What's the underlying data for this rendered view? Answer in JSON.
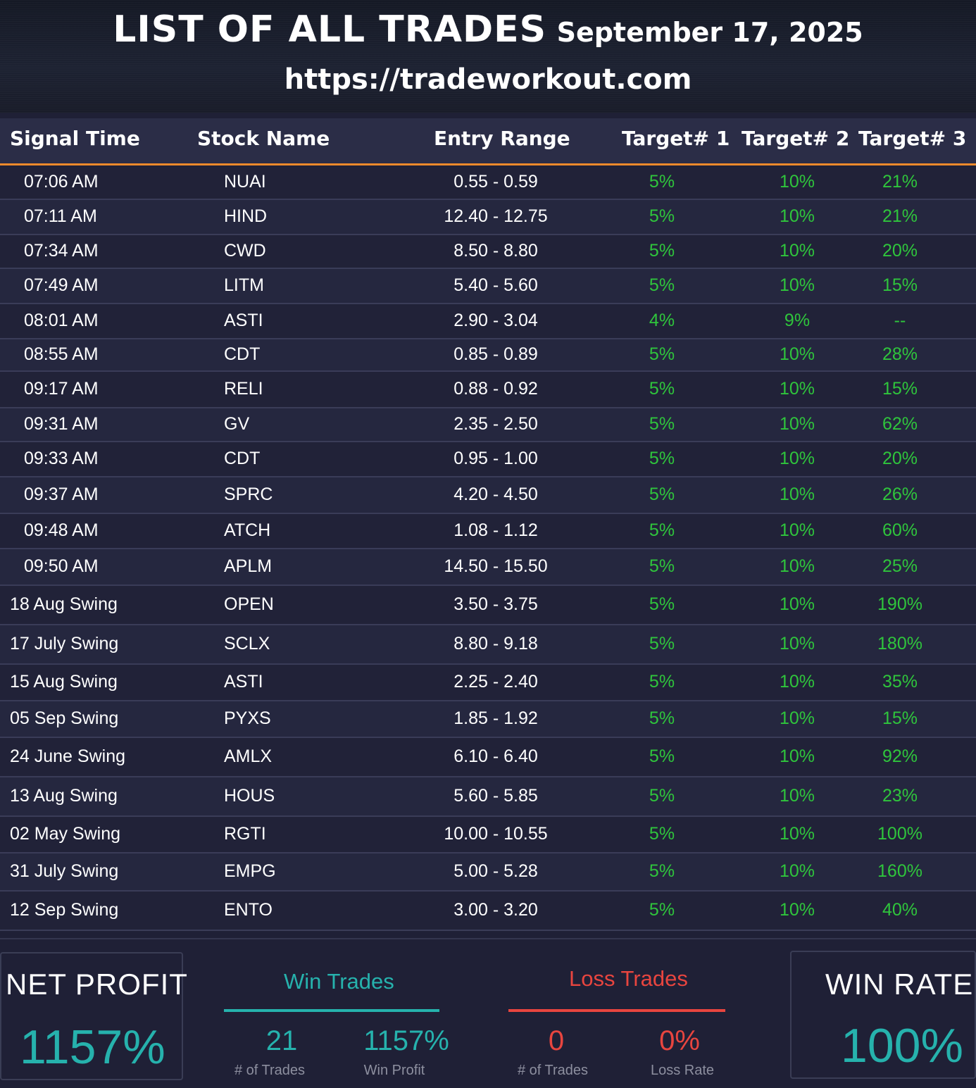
{
  "header": {
    "title": "LIST OF ALL TRADES",
    "date": "September 17, 2025",
    "url": "https://tradeworkout.com"
  },
  "columns": [
    "Signal Time",
    "Stock Name",
    "Entry Range",
    "Target# 1",
    "Target# 2",
    "Target# 3"
  ],
  "trades": [
    {
      "time": "07:06 AM",
      "stock": "NUAI",
      "range": "0.55 - 0.59",
      "t1": "5%",
      "t2": "10%",
      "t3": "21%"
    },
    {
      "time": "07:11 AM",
      "stock": "HIND",
      "range": "12.40 - 12.75",
      "t1": "5%",
      "t2": "10%",
      "t3": "21%"
    },
    {
      "time": "07:34 AM",
      "stock": "CWD",
      "range": "8.50 - 8.80",
      "t1": "5%",
      "t2": "10%",
      "t3": "20%"
    },
    {
      "time": "07:49 AM",
      "stock": "LITM",
      "range": "5.40 - 5.60",
      "t1": "5%",
      "t2": "10%",
      "t3": "15%"
    },
    {
      "time": "08:01 AM",
      "stock": "ASTI",
      "range": "2.90 - 3.04",
      "t1": "4%",
      "t2": "9%",
      "t3": "--"
    },
    {
      "time": "08:55 AM",
      "stock": "CDT",
      "range": "0.85 - 0.89",
      "t1": "5%",
      "t2": "10%",
      "t3": "28%"
    },
    {
      "time": "09:17 AM",
      "stock": "RELI",
      "range": "0.88 - 0.92",
      "t1": "5%",
      "t2": "10%",
      "t3": "15%"
    },
    {
      "time": "09:31 AM",
      "stock": "GV",
      "range": "2.35 - 2.50",
      "t1": "5%",
      "t2": "10%",
      "t3": "62%"
    },
    {
      "time": "09:33 AM",
      "stock": "CDT",
      "range": "0.95 - 1.00",
      "t1": "5%",
      "t2": "10%",
      "t3": "20%"
    },
    {
      "time": "09:37 AM",
      "stock": "SPRC",
      "range": "4.20 - 4.50",
      "t1": "5%",
      "t2": "10%",
      "t3": "26%"
    },
    {
      "time": "09:48 AM",
      "stock": "ATCH",
      "range": "1.08 - 1.12",
      "t1": "5%",
      "t2": "10%",
      "t3": "60%"
    },
    {
      "time": "09:50 AM",
      "stock": "APLM",
      "range": "14.50 - 15.50",
      "t1": "5%",
      "t2": "10%",
      "t3": "25%"
    },
    {
      "time": "18 Aug Swing",
      "stock": "OPEN",
      "range": "3.50 - 3.75",
      "t1": "5%",
      "t2": "10%",
      "t3": "190%"
    },
    {
      "time": "17 July Swing",
      "stock": "SCLX",
      "range": "8.80 - 9.18",
      "t1": "5%",
      "t2": "10%",
      "t3": "180%"
    },
    {
      "time": "15 Aug Swing",
      "stock": "ASTI",
      "range": "2.25 - 2.40",
      "t1": "5%",
      "t2": "10%",
      "t3": "35%"
    },
    {
      "time": "05 Sep Swing",
      "stock": "PYXS",
      "range": "1.85 - 1.92",
      "t1": "5%",
      "t2": "10%",
      "t3": "15%"
    },
    {
      "time": "24 June Swing",
      "stock": "AMLX",
      "range": "6.10 - 6.40",
      "t1": "5%",
      "t2": "10%",
      "t3": "92%"
    },
    {
      "time": "13 Aug Swing",
      "stock": "HOUS",
      "range": "5.60 - 5.85",
      "t1": "5%",
      "t2": "10%",
      "t3": "23%"
    },
    {
      "time": "02 May Swing",
      "stock": "RGTI",
      "range": "10.00 - 10.55",
      "t1": "5%",
      "t2": "10%",
      "t3": "100%"
    },
    {
      "time": "31 July Swing",
      "stock": "EMPG",
      "range": "5.00 - 5.28",
      "t1": "5%",
      "t2": "10%",
      "t3": "160%"
    },
    {
      "time": "12 Sep Swing",
      "stock": "ENTO",
      "range": "3.00 - 3.20",
      "t1": "5%",
      "t2": "10%",
      "t3": "40%"
    }
  ],
  "summary": {
    "net_profit_label": "NET PROFIT",
    "net_profit_value": "1157%",
    "win": {
      "title": "Win Trades",
      "count": "21",
      "count_caption": "# of Trades",
      "profit": "1157%",
      "profit_caption": "Win Profit"
    },
    "loss": {
      "title": "Loss Trades",
      "count": "0",
      "count_caption": "# of Trades",
      "rate": "0%",
      "rate_caption": "Loss Rate"
    },
    "win_rate_label": "WIN RATE",
    "win_rate_value": "100%"
  },
  "colors": {
    "accent_orange": "#f08a2c",
    "target_green": "#2fc53c",
    "teal": "#26b2ad",
    "loss_red": "#e8453f"
  }
}
